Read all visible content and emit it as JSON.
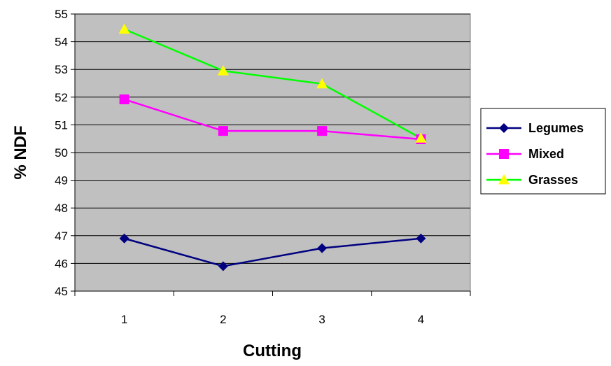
{
  "chart_data": {
    "type": "line",
    "xlabel": "Cutting",
    "ylabel": "% NDF",
    "categories": [
      "1",
      "2",
      "3",
      "4"
    ],
    "ylim": [
      45,
      55
    ],
    "yticks": [
      "45",
      "46",
      "47",
      "48",
      "49",
      "50",
      "51",
      "52",
      "53",
      "54",
      "55"
    ],
    "grid": true,
    "plot_background": "#c0c0c0",
    "legend_position": "right",
    "series": [
      {
        "name": "Legumes",
        "values": [
          46.9,
          45.9,
          46.55,
          46.9
        ],
        "color": "#000080",
        "marker": "diamond"
      },
      {
        "name": "Mixed",
        "values": [
          51.92,
          50.78,
          50.78,
          50.48
        ],
        "color": "#ff00ff",
        "marker": "square"
      },
      {
        "name": "Grasses",
        "values": [
          54.45,
          52.95,
          52.48,
          50.52
        ],
        "color": "#00ff00",
        "marker": "triangle",
        "marker_color": "#ffff00"
      }
    ]
  }
}
